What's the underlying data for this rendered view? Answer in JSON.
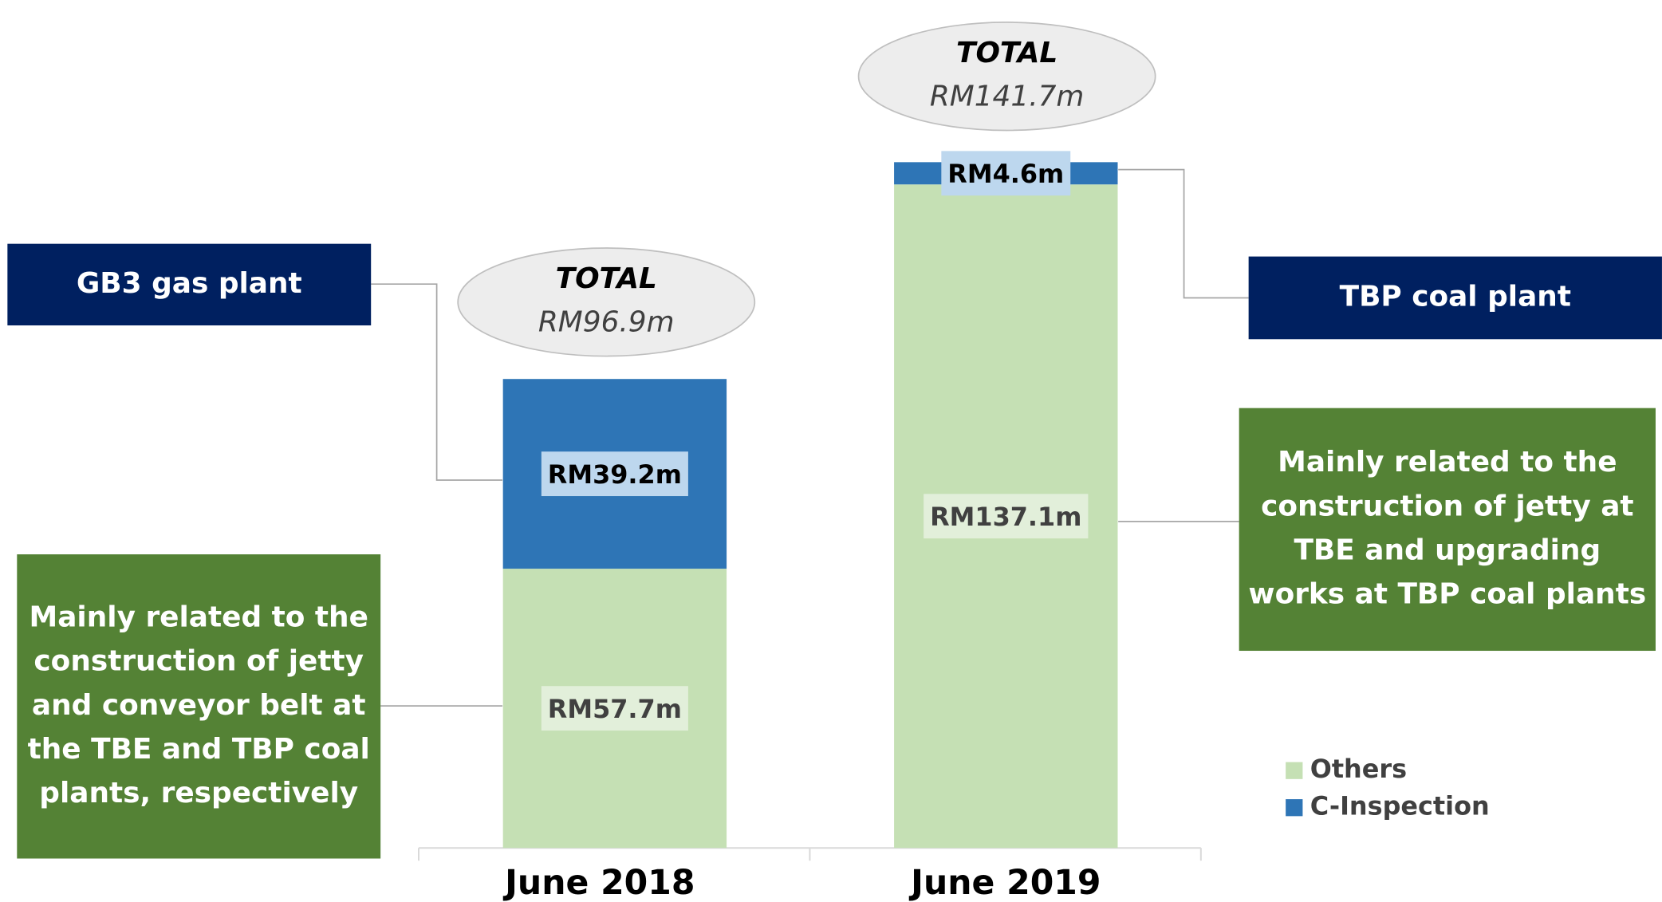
{
  "chart_data": {
    "type": "stacked-bar",
    "categories": [
      "June 2018",
      "June 2019"
    ],
    "series": [
      {
        "name": "Others",
        "color": "#c5e0b4",
        "values": [
          57.7,
          137.1
        ],
        "value_labels": [
          "RM57.7m",
          "RM137.1m"
        ]
      },
      {
        "name": "C-Inspection",
        "color": "#2e75b6",
        "values": [
          39.2,
          4.6
        ],
        "value_labels": [
          "RM39.2m",
          "RM4.6m"
        ]
      }
    ],
    "total_title": "TOTAL",
    "totals": [
      96.9,
      141.7
    ],
    "total_labels": [
      "RM96.9m",
      "RM141.7m"
    ],
    "annotations": [
      {
        "lines": [
          "GB3 gas plant"
        ]
      },
      {
        "lines": [
          "Mainly related to the",
          "construction of jetty",
          "and conveyor belt at",
          "the TBE and TBP coal",
          "plants, respectively"
        ]
      },
      {
        "lines": [
          "TBP coal plant"
        ]
      },
      {
        "lines": [
          "Mainly related to the",
          "construction of jetty at",
          "TBE and upgrading",
          "works at TBP coal plants"
        ]
      }
    ]
  }
}
